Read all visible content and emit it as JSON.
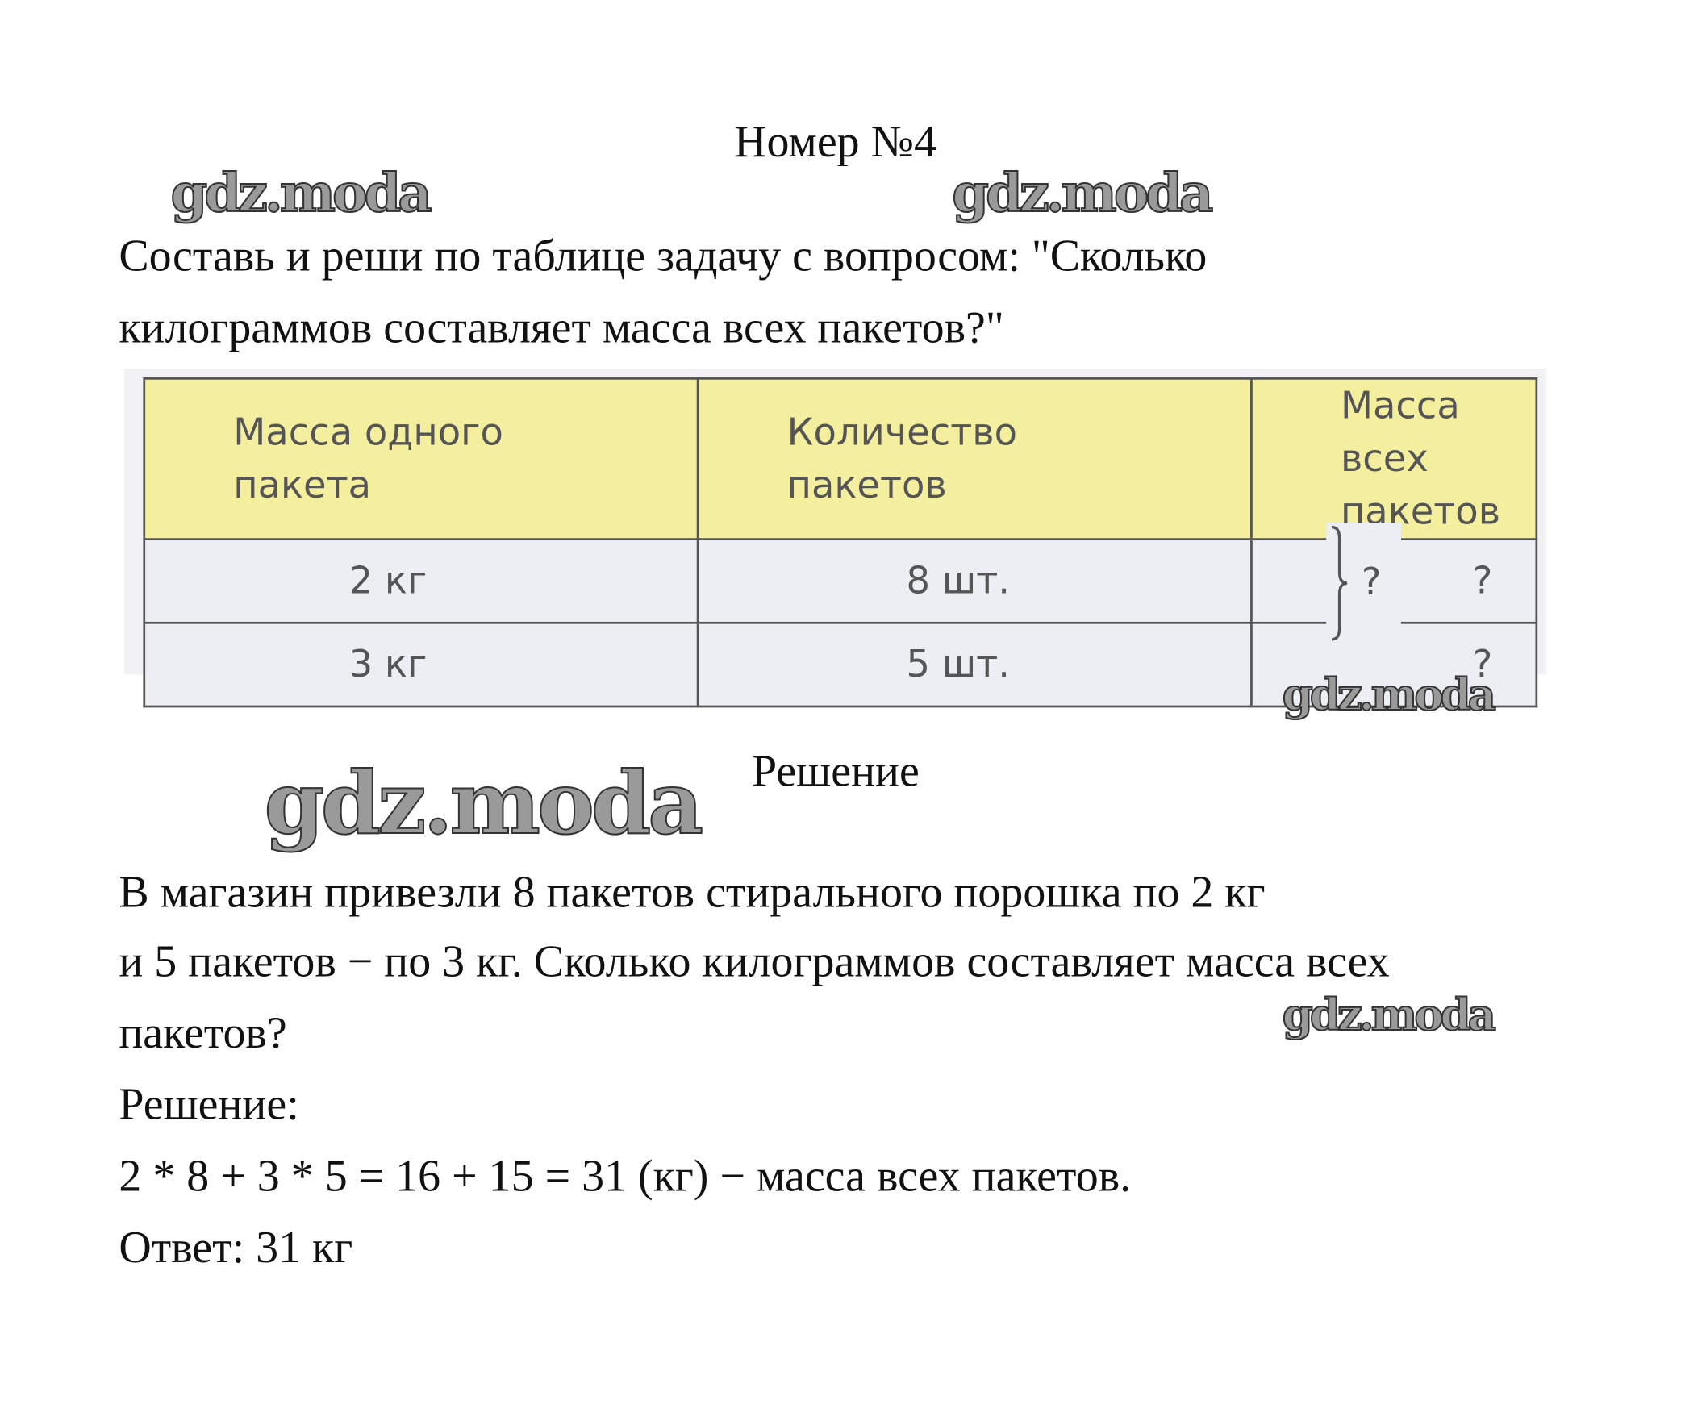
{
  "title": "Номер №4",
  "task": {
    "lines": [
      "Составь и реши по таблице задачу с вопросом: \"Сколько",
      "килограммов составляет масса всех пакетов?\""
    ]
  },
  "table": {
    "headers": [
      [
        "Масса  одного",
        "пакета"
      ],
      [
        "Количество",
        "пакетов"
      ],
      [
        "Масса  всех",
        "пакетов"
      ]
    ],
    "rows": [
      [
        "2  кг",
        "8  шт.",
        "?"
      ],
      [
        "3  кг",
        "5  шт.",
        "?"
      ]
    ],
    "total_label": "?",
    "colors": {
      "header_bg": "#f4ef9f",
      "row_bg": "#eceef3",
      "border": "#555555"
    }
  },
  "solution_heading": "Решение",
  "solution": {
    "lines": [
      "В магазин привезли 8 пакетов стирального порошка по 2 кг",
      "и 5 пакетов − по 3 кг. Сколько килограммов составляет масса всех",
      "пакетов?",
      "Решение:",
      "2 * 8 + 3 * 5 = 16 + 15 = 31 (кг) − масса всех пакетов.",
      "Ответ: 31 кг"
    ]
  },
  "watermark": "gdz.moda"
}
